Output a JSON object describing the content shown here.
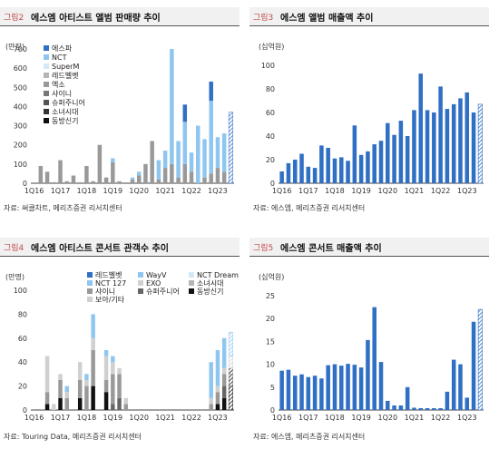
{
  "charts": [
    {
      "id": "c1",
      "title_tag": "그림2",
      "title": "에스엠 아티스트 앨범 판매량 추이",
      "unit": "(만장)",
      "source": "자료: 써클차트, 메리츠증권 리서치센터",
      "chart_data": {
        "type": "bar",
        "stacked": true,
        "ylim": [
          0,
          700
        ],
        "yticks": [
          0,
          100,
          200,
          300,
          400,
          500,
          600,
          700
        ],
        "xticks": [
          "1Q16",
          "1Q17",
          "1Q18",
          "1Q19",
          "1Q20",
          "1Q21",
          "1Q22",
          "1Q23"
        ],
        "n": 31,
        "legend": [
          "에스파",
          "NCT",
          "SuperM",
          "레드벨벳",
          "엑소",
          "샤이니",
          "슈퍼주니어",
          "소녀시대",
          "동방신기"
        ],
        "colors": {
          "에스파": "#2f6fc4",
          "NCT": "#8fc6ef",
          "SuperM": "#d2e9f8",
          "레드벨벳": "#b5b5b5",
          "엑소": "#999999",
          "샤이니": "#777777",
          "슈퍼주니어": "#555555",
          "소녀시대": "#333333",
          "동방신기": "#0f0f0f"
        },
        "last_hatched": true,
        "series": [
          {
            "name": "동방신기",
            "values": [
              0,
              0,
              0,
              0,
              0,
              0,
              0,
              0,
              0,
              0,
              0,
              0,
              0,
              0,
              0,
              0,
              0,
              0,
              0,
              0,
              0,
              0,
              0,
              0,
              0,
              0,
              0,
              0,
              0,
              0,
              0
            ]
          },
          {
            "name": "소녀시대",
            "values": [
              0,
              0,
              0,
              0,
              0,
              0,
              0,
              0,
              0,
              0,
              0,
              0,
              0,
              0,
              0,
              0,
              0,
              0,
              0,
              0,
              0,
              0,
              0,
              0,
              0,
              0,
              0,
              0,
              0,
              0,
              0
            ]
          },
          {
            "name": "슈퍼주니어",
            "values": [
              0,
              0,
              0,
              0,
              0,
              0,
              0,
              0,
              0,
              0,
              0,
              0,
              0,
              0,
              0,
              0,
              0,
              0,
              0,
              0,
              0,
              0,
              0,
              0,
              0,
              0,
              0,
              0,
              0,
              0,
              0
            ]
          },
          {
            "name": "샤이니",
            "values": [
              0,
              0,
              0,
              0,
              0,
              0,
              0,
              0,
              0,
              0,
              0,
              0,
              0,
              0,
              0,
              0,
              0,
              0,
              0,
              0,
              0,
              0,
              0,
              0,
              0,
              0,
              0,
              0,
              0,
              0,
              0
            ]
          },
          {
            "name": "엑소",
            "values": [
              0,
              90,
              60,
              5,
              120,
              10,
              40,
              5,
              90,
              10,
              200,
              30,
              110,
              10,
              0,
              20,
              40,
              100,
              220,
              20,
              80,
              100,
              30,
              100,
              60,
              0,
              30,
              50,
              80,
              60,
              0
            ]
          },
          {
            "name": "레드벨벳",
            "values": [
              0,
              0,
              0,
              0,
              0,
              0,
              0,
              0,
              0,
              0,
              0,
              0,
              0,
              0,
              0,
              0,
              0,
              0,
              0,
              0,
              0,
              0,
              0,
              0,
              0,
              0,
              0,
              0,
              0,
              0,
              0
            ]
          },
          {
            "name": "SuperM",
            "values": [
              0,
              0,
              0,
              0,
              0,
              0,
              0,
              0,
              0,
              0,
              0,
              0,
              0,
              0,
              0,
              0,
              0,
              0,
              0,
              0,
              0,
              0,
              0,
              0,
              0,
              0,
              0,
              0,
              0,
              0,
              0
            ]
          },
          {
            "name": "NCT",
            "values": [
              0,
              0,
              0,
              0,
              0,
              0,
              0,
              0,
              0,
              0,
              0,
              0,
              20,
              0,
              0,
              10,
              20,
              0,
              0,
              100,
              90,
              600,
              190,
              220,
              100,
              300,
              200,
              380,
              160,
              200,
              0
            ]
          },
          {
            "name": "에스파",
            "values": [
              0,
              0,
              0,
              0,
              0,
              0,
              0,
              0,
              0,
              0,
              0,
              0,
              0,
              0,
              0,
              0,
              0,
              0,
              0,
              0,
              0,
              0,
              0,
              90,
              0,
              0,
              0,
              100,
              0,
              0,
              370
            ]
          }
        ]
      }
    },
    {
      "id": "c2",
      "title_tag": "그림3",
      "title": "에스엠 앨범 매출액 추이",
      "unit": "(십억원)",
      "source": "자료: 에스엠, 메리츠증권 리서치센터",
      "chart_data": {
        "type": "bar",
        "ylim": [
          0,
          100
        ],
        "yticks": [
          0,
          20,
          40,
          60,
          80,
          100
        ],
        "xticks": [
          "1Q16",
          "1Q17",
          "1Q18",
          "1Q19",
          "1Q20",
          "1Q21",
          "1Q22",
          "1Q23"
        ],
        "color": "#2f6fc4",
        "last_hatched": true,
        "values": [
          10,
          17,
          20,
          25,
          14,
          13,
          32,
          30,
          21,
          22,
          19,
          49,
          24,
          27,
          33,
          36,
          51,
          41,
          53,
          40,
          62,
          93,
          62,
          60,
          82,
          63,
          67,
          72,
          77,
          60,
          67
        ]
      }
    },
    {
      "id": "c3",
      "title_tag": "그림4",
      "title": "에스엠 아티스트 콘서트 관객수 추이",
      "unit": "(만명)",
      "source": "자료: Touring Data, 메리츠증권 리서치센터",
      "chart_data": {
        "type": "bar",
        "stacked": true,
        "ylim": [
          0,
          100
        ],
        "yticks": [
          0,
          20,
          40,
          60,
          80,
          100
        ],
        "xticks": [
          "1Q16",
          "1Q17",
          "1Q18",
          "1Q19",
          "1Q20",
          "1Q21",
          "1Q22",
          "1Q23"
        ],
        "legend": [
          "레드벨벳",
          "WayV",
          "NCT Dream",
          "NCT 127",
          "EXO",
          "소녀시대",
          "샤이니",
          "슈퍼주니어",
          "동방신기",
          "보아/기타"
        ],
        "colors": {
          "레드벨벳": "#2f6fc4",
          "WayV": "#8fc6ef",
          "NCT Dream": "#d2e9f8",
          "NCT 127": "#8fc6ef",
          "EXO": "#d0d0d0",
          "소녀시대": "#b5b5b5",
          "샤이니": "#999999",
          "슈퍼주니어": "#666666",
          "동방신기": "#111111",
          "보아/기타": "#cfcfcf"
        },
        "last_hatched": true,
        "series": [
          {
            "name": "동방신기",
            "values": [
              0,
              0,
              5,
              0,
              10,
              0,
              0,
              10,
              0,
              20,
              0,
              15,
              0,
              0,
              0,
              0,
              0,
              0,
              0,
              0,
              0,
              0,
              0,
              0,
              0,
              0,
              0,
              0,
              5,
              10,
              20
            ]
          },
          {
            "name": "슈퍼주니어",
            "values": [
              0,
              0,
              0,
              0,
              0,
              0,
              0,
              0,
              0,
              0,
              0,
              0,
              5,
              10,
              0,
              0,
              0,
              0,
              0,
              0,
              0,
              0,
              0,
              0,
              0,
              0,
              0,
              0,
              0,
              10,
              10
            ]
          },
          {
            "name": "샤이니",
            "values": [
              0,
              0,
              10,
              0,
              15,
              10,
              0,
              15,
              20,
              30,
              0,
              10,
              25,
              20,
              5,
              0,
              0,
              0,
              0,
              0,
              0,
              0,
              0,
              0,
              0,
              0,
              0,
              5,
              10,
              10,
              5
            ]
          },
          {
            "name": "EXO",
            "values": [
              0,
              0,
              30,
              5,
              5,
              5,
              0,
              15,
              5,
              10,
              0,
              20,
              10,
              5,
              5,
              0,
              0,
              0,
              0,
              0,
              0,
              0,
              0,
              0,
              0,
              0,
              0,
              5,
              5,
              5,
              10
            ]
          },
          {
            "name": "NCT 127",
            "values": [
              0,
              0,
              0,
              0,
              0,
              5,
              0,
              0,
              5,
              20,
              0,
              5,
              5,
              0,
              0,
              0,
              0,
              0,
              0,
              0,
              0,
              0,
              0,
              0,
              0,
              0,
              0,
              30,
              30,
              25,
              20
            ]
          }
        ]
      }
    },
    {
      "id": "c4",
      "title_tag": "그림5",
      "title": "에스엠 콘서트 매출액 추이",
      "unit": "(십억원)",
      "source": "자료: 에스엠, 메리츠증권 리서치센터",
      "chart_data": {
        "type": "bar",
        "ylim": [
          0,
          25
        ],
        "yticks": [
          0,
          5,
          10,
          15,
          20,
          25
        ],
        "xticks": [
          "1Q16",
          "1Q17",
          "1Q18",
          "1Q19",
          "1Q20",
          "1Q21",
          "1Q22",
          "1Q23"
        ],
        "color": "#2f6fc4",
        "last_hatched": true,
        "values": [
          8.6,
          8.8,
          7.5,
          7.8,
          7.2,
          7.5,
          6.9,
          9.8,
          10.0,
          9.7,
          10.1,
          9.9,
          9.3,
          15.3,
          22.5,
          10.5,
          2.0,
          1.0,
          1.0,
          5.0,
          0.5,
          0.4,
          0.4,
          0.4,
          0.4,
          4.0,
          11.0,
          10.0,
          2.7,
          19.3,
          22.0
        ]
      }
    }
  ]
}
